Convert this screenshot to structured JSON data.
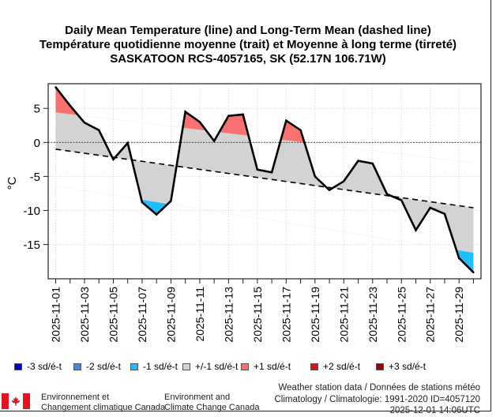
{
  "titles": {
    "line1": "Daily Mean Temperature (line) and Long-Term Mean (dashed line)",
    "line2": "Température quotidienne moyenne (trait) et Moyenne à long terme (tirreté)",
    "line3": "SASKATOON RCS-4057165, SK (52.17N 106.71W)"
  },
  "chart_data": {
    "type": "line",
    "title": "Daily Mean Temperature (line) and Long-Term Mean (dashed line)",
    "xlabel": "",
    "ylabel": "°C",
    "ylim": [
      -19.5,
      8.5
    ],
    "yticks": [
      5,
      0,
      -5,
      -10,
      -15
    ],
    "ytick_labels": [
      "5",
      "0",
      "-5",
      "-10",
      "-15"
    ],
    "grid": true,
    "x": [
      "2025-11-01",
      "2025-11-02",
      "2025-11-03",
      "2025-11-04",
      "2025-11-05",
      "2025-11-06",
      "2025-11-07",
      "2025-11-08",
      "2025-11-09",
      "2025-11-10",
      "2025-11-11",
      "2025-11-12",
      "2025-11-13",
      "2025-11-14",
      "2025-11-15",
      "2025-11-16",
      "2025-11-17",
      "2025-11-18",
      "2025-11-19",
      "2025-11-20",
      "2025-11-21",
      "2025-11-22",
      "2025-11-23",
      "2025-11-24",
      "2025-11-25",
      "2025-11-26",
      "2025-11-27",
      "2025-11-28",
      "2025-11-29",
      "2025-11-30"
    ],
    "xtick_labels": [
      "2025-11-01",
      "2025-11-03",
      "2025-11-05",
      "2025-11-07",
      "2025-11-09",
      "2025-11-11",
      "2025-11-13",
      "2025-11-15",
      "2025-11-17",
      "2025-11-19",
      "2025-11-21",
      "2025-11-23",
      "2025-11-25",
      "2025-11-27",
      "2025-11-29"
    ],
    "series": [
      {
        "name": "Daily Mean Temperature",
        "style": "solid",
        "values": [
          8.1,
          5.4,
          2.9,
          1.8,
          -2.5,
          -0.1,
          -8.8,
          -10.6,
          -8.6,
          4.5,
          3.0,
          0.2,
          3.9,
          4.1,
          -4.0,
          -4.4,
          3.2,
          1.8,
          -5.0,
          -7.0,
          -5.7,
          -2.7,
          -3.1,
          -7.6,
          -8.5,
          -12.9,
          -9.6,
          -10.5,
          -17.0,
          -19.1
        ]
      },
      {
        "name": "Long-Term Mean",
        "style": "dashed",
        "start": -1.0,
        "end": -9.6
      },
      {
        "name": "Standard deviation band (+/-1 sd)",
        "start": 5.4,
        "end": 6.6
      }
    ],
    "zero_line": 0,
    "legend_position": "bottom",
    "legend": [
      {
        "label": "-3 sd/é-t",
        "color": "#0000c8"
      },
      {
        "label": "-2 sd/é-t",
        "color": "#3c8ce0"
      },
      {
        "label": "-1 sd/é-t",
        "color": "#1ebeff"
      },
      {
        "label": "+/-1 sd/é-t",
        "color": "#d3d3d3"
      },
      {
        "label": "+1 sd/é-t",
        "color": "#f87070"
      },
      {
        "label": "+2 sd/é-t",
        "color": "#e01010"
      },
      {
        "label": "+3 sd/é-t",
        "color": "#a00000"
      }
    ]
  },
  "footer": {
    "org_fr_1": "Environnement et",
    "org_fr_2": "Changement climatique Canada",
    "org_en_1": "Environment and",
    "org_en_2": "Climate Change Canada",
    "source_1": "Weather station data / Données de stations météo",
    "source_2": "Climatology / Climatologie: 1991-2020 ID=4057120",
    "source_3": "2025-12-01 14:06UTC"
  },
  "logo_icon": "canada-flag-icon"
}
